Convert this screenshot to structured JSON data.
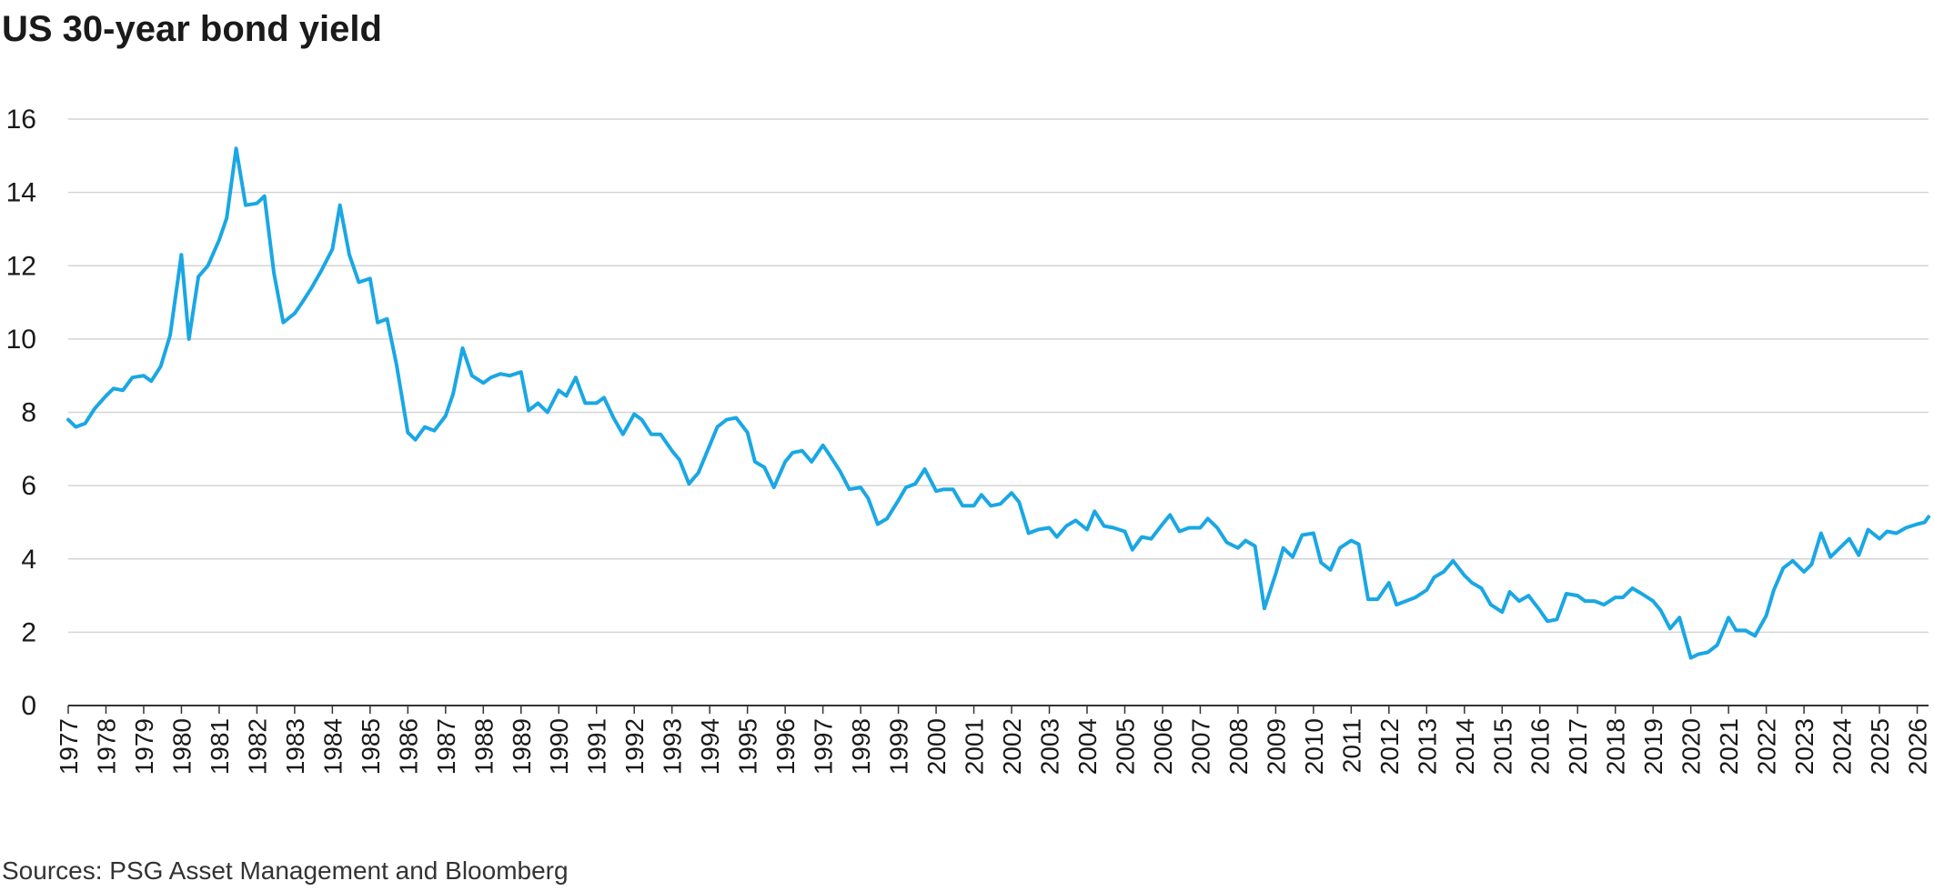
{
  "title": "US 30-year bond yield",
  "source": "Sources: PSG Asset Management and Bloomberg",
  "colors": {
    "line": "#1aa7e4",
    "grid": "#d4d4d4",
    "axis": "#333333",
    "text": "#1a1a1a"
  },
  "chart_data": {
    "type": "line",
    "title": "US 30-year bond yield",
    "xlabel": "",
    "ylabel": "",
    "xlim": [
      1977.0,
      2026.3
    ],
    "ylim": [
      0,
      16
    ],
    "yticks": [
      0,
      2,
      4,
      6,
      8,
      10,
      12,
      14,
      16
    ],
    "xticks": [
      "1977",
      "1978",
      "1979",
      "1980",
      "1981",
      "1982",
      "1983",
      "1984",
      "1985",
      "1986",
      "1987",
      "1988",
      "1989",
      "1990",
      "1991",
      "1992",
      "1993",
      "1994",
      "1995",
      "1996",
      "1997",
      "1998",
      "1999",
      "2000",
      "2001",
      "2002",
      "2003",
      "2004",
      "2005",
      "2006",
      "2007",
      "2008",
      "2009",
      "2010",
      "2011",
      "2012",
      "2013",
      "2014",
      "2015",
      "2016",
      "2017",
      "2018",
      "2019",
      "2020",
      "2021",
      "2022",
      "2023",
      "2024",
      "2025",
      "2026"
    ],
    "grid": true,
    "legend": "none",
    "series": [
      {
        "values": [
          [
            1977.0,
            7.8
          ],
          [
            1977.2,
            7.6
          ],
          [
            1977.45,
            7.7
          ],
          [
            1977.7,
            8.1
          ],
          [
            1978.0,
            8.45
          ],
          [
            1978.2,
            8.65
          ],
          [
            1978.45,
            8.6
          ],
          [
            1978.7,
            8.95
          ],
          [
            1979.0,
            9.0
          ],
          [
            1979.2,
            8.85
          ],
          [
            1979.45,
            9.25
          ],
          [
            1979.7,
            10.1
          ],
          [
            1980.0,
            12.3
          ],
          [
            1980.2,
            10.0
          ],
          [
            1980.45,
            11.7
          ],
          [
            1980.7,
            12.0
          ],
          [
            1981.0,
            12.7
          ],
          [
            1981.2,
            13.3
          ],
          [
            1981.45,
            15.2
          ],
          [
            1981.7,
            13.65
          ],
          [
            1982.0,
            13.7
          ],
          [
            1982.2,
            13.9
          ],
          [
            1982.45,
            11.8
          ],
          [
            1982.7,
            10.45
          ],
          [
            1983.0,
            10.7
          ],
          [
            1983.2,
            11.0
          ],
          [
            1983.45,
            11.4
          ],
          [
            1983.7,
            11.85
          ],
          [
            1984.0,
            12.45
          ],
          [
            1984.2,
            13.65
          ],
          [
            1984.45,
            12.3
          ],
          [
            1984.7,
            11.55
          ],
          [
            1985.0,
            11.65
          ],
          [
            1985.2,
            10.45
          ],
          [
            1985.45,
            10.55
          ],
          [
            1985.7,
            9.3
          ],
          [
            1986.0,
            7.45
          ],
          [
            1986.2,
            7.25
          ],
          [
            1986.45,
            7.6
          ],
          [
            1986.7,
            7.5
          ],
          [
            1987.0,
            7.9
          ],
          [
            1987.2,
            8.5
          ],
          [
            1987.45,
            9.75
          ],
          [
            1987.7,
            9.0
          ],
          [
            1988.0,
            8.8
          ],
          [
            1988.2,
            8.95
          ],
          [
            1988.45,
            9.05
          ],
          [
            1988.7,
            9.0
          ],
          [
            1989.0,
            9.1
          ],
          [
            1989.2,
            8.05
          ],
          [
            1989.45,
            8.25
          ],
          [
            1989.7,
            8.0
          ],
          [
            1990.0,
            8.6
          ],
          [
            1990.2,
            8.45
          ],
          [
            1990.45,
            8.95
          ],
          [
            1990.7,
            8.25
          ],
          [
            1991.0,
            8.25
          ],
          [
            1991.2,
            8.4
          ],
          [
            1991.45,
            7.85
          ],
          [
            1991.7,
            7.4
          ],
          [
            1992.0,
            7.95
          ],
          [
            1992.2,
            7.8
          ],
          [
            1992.45,
            7.4
          ],
          [
            1992.7,
            7.4
          ],
          [
            1993.0,
            6.95
          ],
          [
            1993.2,
            6.7
          ],
          [
            1993.45,
            6.05
          ],
          [
            1993.7,
            6.35
          ],
          [
            1994.0,
            7.1
          ],
          [
            1994.2,
            7.6
          ],
          [
            1994.45,
            7.8
          ],
          [
            1994.7,
            7.85
          ],
          [
            1995.0,
            7.45
          ],
          [
            1995.2,
            6.65
          ],
          [
            1995.45,
            6.5
          ],
          [
            1995.7,
            5.95
          ],
          [
            1996.0,
            6.65
          ],
          [
            1996.2,
            6.9
          ],
          [
            1996.45,
            6.95
          ],
          [
            1996.7,
            6.65
          ],
          [
            1997.0,
            7.1
          ],
          [
            1997.2,
            6.8
          ],
          [
            1997.45,
            6.4
          ],
          [
            1997.7,
            5.9
          ],
          [
            1998.0,
            5.95
          ],
          [
            1998.2,
            5.65
          ],
          [
            1998.45,
            4.95
          ],
          [
            1998.7,
            5.1
          ],
          [
            1999.0,
            5.6
          ],
          [
            1999.2,
            5.95
          ],
          [
            1999.45,
            6.05
          ],
          [
            1999.7,
            6.45
          ],
          [
            2000.0,
            5.85
          ],
          [
            2000.2,
            5.9
          ],
          [
            2000.45,
            5.9
          ],
          [
            2000.7,
            5.45
          ],
          [
            2001.0,
            5.45
          ],
          [
            2001.2,
            5.75
          ],
          [
            2001.45,
            5.45
          ],
          [
            2001.7,
            5.5
          ],
          [
            2002.0,
            5.8
          ],
          [
            2002.2,
            5.55
          ],
          [
            2002.45,
            4.7
          ],
          [
            2002.7,
            4.8
          ],
          [
            2003.0,
            4.85
          ],
          [
            2003.2,
            4.6
          ],
          [
            2003.45,
            4.9
          ],
          [
            2003.7,
            5.05
          ],
          [
            2004.0,
            4.8
          ],
          [
            2004.2,
            5.3
          ],
          [
            2004.45,
            4.9
          ],
          [
            2004.7,
            4.85
          ],
          [
            2005.0,
            4.75
          ],
          [
            2005.2,
            4.25
          ],
          [
            2005.45,
            4.6
          ],
          [
            2005.7,
            4.55
          ],
          [
            2006.0,
            4.95
          ],
          [
            2006.2,
            5.2
          ],
          [
            2006.45,
            4.75
          ],
          [
            2006.7,
            4.85
          ],
          [
            2007.0,
            4.85
          ],
          [
            2007.2,
            5.1
          ],
          [
            2007.45,
            4.85
          ],
          [
            2007.7,
            4.45
          ],
          [
            2008.0,
            4.3
          ],
          [
            2008.2,
            4.5
          ],
          [
            2008.45,
            4.35
          ],
          [
            2008.7,
            2.65
          ],
          [
            2009.0,
            3.6
          ],
          [
            2009.2,
            4.3
          ],
          [
            2009.45,
            4.05
          ],
          [
            2009.7,
            4.65
          ],
          [
            2010.0,
            4.7
          ],
          [
            2010.2,
            3.9
          ],
          [
            2010.45,
            3.7
          ],
          [
            2010.7,
            4.3
          ],
          [
            2011.0,
            4.5
          ],
          [
            2011.2,
            4.4
          ],
          [
            2011.45,
            2.9
          ],
          [
            2011.7,
            2.9
          ],
          [
            2012.0,
            3.35
          ],
          [
            2012.2,
            2.75
          ],
          [
            2012.45,
            2.85
          ],
          [
            2012.7,
            2.95
          ],
          [
            2013.0,
            3.15
          ],
          [
            2013.2,
            3.5
          ],
          [
            2013.45,
            3.65
          ],
          [
            2013.7,
            3.95
          ],
          [
            2014.0,
            3.55
          ],
          [
            2014.2,
            3.35
          ],
          [
            2014.45,
            3.2
          ],
          [
            2014.7,
            2.75
          ],
          [
            2015.0,
            2.55
          ],
          [
            2015.2,
            3.1
          ],
          [
            2015.45,
            2.85
          ],
          [
            2015.7,
            3.0
          ],
          [
            2016.0,
            2.6
          ],
          [
            2016.2,
            2.3
          ],
          [
            2016.45,
            2.35
          ],
          [
            2016.7,
            3.05
          ],
          [
            2017.0,
            3.0
          ],
          [
            2017.2,
            2.85
          ],
          [
            2017.45,
            2.85
          ],
          [
            2017.7,
            2.75
          ],
          [
            2018.0,
            2.95
          ],
          [
            2018.2,
            2.95
          ],
          [
            2018.45,
            3.2
          ],
          [
            2018.7,
            3.05
          ],
          [
            2019.0,
            2.85
          ],
          [
            2019.2,
            2.6
          ],
          [
            2019.45,
            2.1
          ],
          [
            2019.7,
            2.4
          ],
          [
            2020.0,
            1.3
          ],
          [
            2020.2,
            1.4
          ],
          [
            2020.45,
            1.45
          ],
          [
            2020.7,
            1.65
          ],
          [
            2021.0,
            2.4
          ],
          [
            2021.2,
            2.05
          ],
          [
            2021.45,
            2.05
          ],
          [
            2021.7,
            1.9
          ],
          [
            2022.0,
            2.45
          ],
          [
            2022.2,
            3.15
          ],
          [
            2022.45,
            3.75
          ],
          [
            2022.7,
            3.95
          ],
          [
            2023.0,
            3.65
          ],
          [
            2023.2,
            3.85
          ],
          [
            2023.45,
            4.7
          ],
          [
            2023.7,
            4.05
          ],
          [
            2024.0,
            4.35
          ],
          [
            2024.2,
            4.55
          ],
          [
            2024.45,
            4.1
          ],
          [
            2024.7,
            4.8
          ],
          [
            2025.0,
            4.55
          ],
          [
            2025.2,
            4.75
          ],
          [
            2025.45,
            4.7
          ],
          [
            2025.7,
            4.85
          ],
          [
            2026.0,
            4.95
          ],
          [
            2026.2,
            5.0
          ],
          [
            2026.3,
            5.15
          ]
        ]
      }
    ]
  }
}
